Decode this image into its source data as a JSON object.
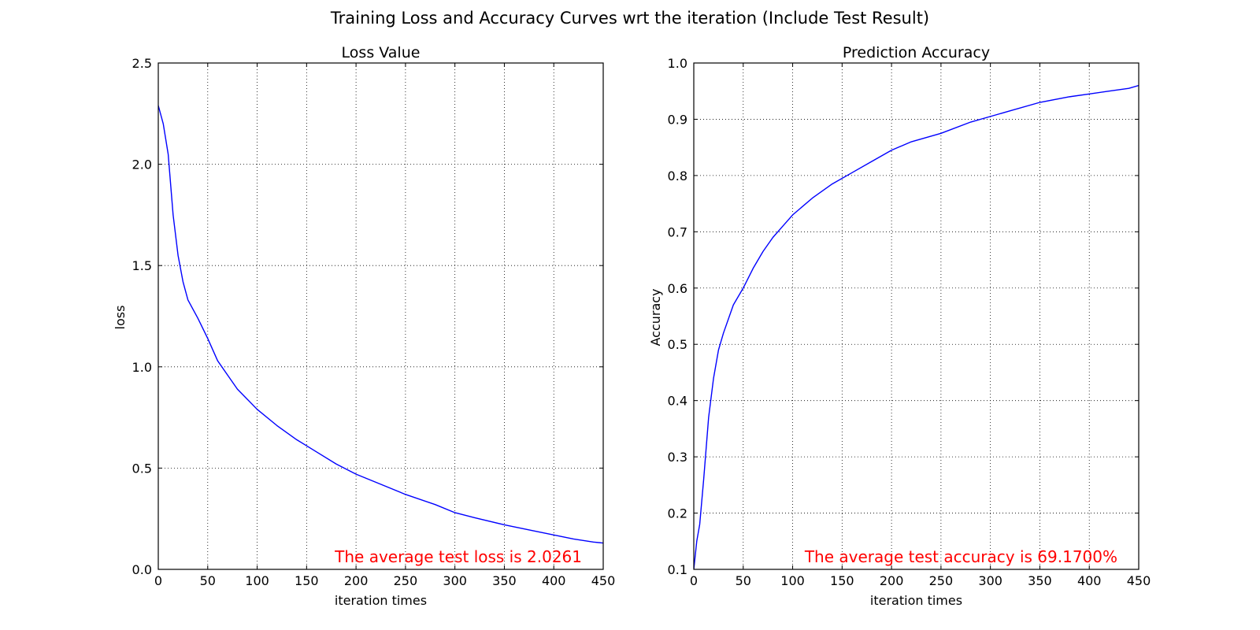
{
  "figure": {
    "suptitle": "Training Loss and Accuracy Curves wrt the iteration (Include Test Result)"
  },
  "chart_data": [
    {
      "type": "line",
      "title": "Loss Value",
      "xlabel": "iteration times",
      "ylabel": "loss",
      "xlim": [
        0,
        450
      ],
      "ylim": [
        0,
        2.5
      ],
      "xticks": [
        "0",
        "50",
        "100",
        "150",
        "200",
        "250",
        "300",
        "350",
        "400",
        "450"
      ],
      "yticks": [
        "0.0",
        "0.5",
        "1.0",
        "1.5",
        "2.0",
        "2.5"
      ],
      "grid": true,
      "line_color": "#0000ff",
      "annotation": {
        "text": "The average test loss is 2.0261",
        "color": "#ff0000"
      },
      "series": [
        {
          "x": [
            0,
            5,
            10,
            15,
            20,
            25,
            30,
            40,
            50,
            60,
            70,
            80,
            90,
            100,
            120,
            140,
            160,
            180,
            200,
            220,
            250,
            280,
            300,
            320,
            350,
            380,
            400,
            420,
            440,
            450
          ],
          "y": [
            2.29,
            2.2,
            2.05,
            1.75,
            1.55,
            1.42,
            1.33,
            1.24,
            1.14,
            1.03,
            0.96,
            0.89,
            0.84,
            0.79,
            0.71,
            0.64,
            0.58,
            0.52,
            0.47,
            0.43,
            0.37,
            0.32,
            0.28,
            0.255,
            0.22,
            0.19,
            0.17,
            0.15,
            0.135,
            0.13
          ]
        }
      ]
    },
    {
      "type": "line",
      "title": "Prediction Accuracy",
      "xlabel": "iteration times",
      "ylabel": "Accuracy",
      "xlim": [
        0,
        450
      ],
      "ylim": [
        0.1,
        1.0
      ],
      "xticks": [
        "0",
        "50",
        "100",
        "150",
        "200",
        "250",
        "300",
        "350",
        "400",
        "450"
      ],
      "yticks": [
        "0.1",
        "0.2",
        "0.3",
        "0.4",
        "0.5",
        "0.6",
        "0.7",
        "0.8",
        "0.9",
        "1.0"
      ],
      "grid": true,
      "line_color": "#0000ff",
      "annotation": {
        "text": "The average test accuracy is 69.1700%",
        "color": "#ff0000"
      },
      "series": [
        {
          "x": [
            0,
            3,
            6,
            10,
            15,
            20,
            25,
            30,
            40,
            50,
            60,
            70,
            80,
            90,
            100,
            120,
            140,
            160,
            180,
            200,
            220,
            250,
            280,
            300,
            320,
            350,
            380,
            400,
            420,
            440,
            450
          ],
          "y": [
            0.1,
            0.15,
            0.18,
            0.26,
            0.37,
            0.44,
            0.49,
            0.52,
            0.57,
            0.6,
            0.635,
            0.665,
            0.69,
            0.71,
            0.73,
            0.76,
            0.785,
            0.805,
            0.825,
            0.845,
            0.86,
            0.875,
            0.895,
            0.905,
            0.915,
            0.93,
            0.94,
            0.945,
            0.95,
            0.955,
            0.96
          ]
        }
      ]
    }
  ]
}
